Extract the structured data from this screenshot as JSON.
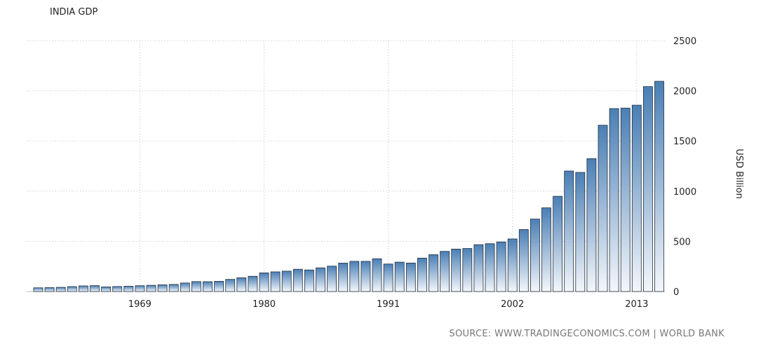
{
  "chart_data": {
    "type": "bar",
    "title": "INDIA GDP",
    "ylabel": "USD Billion",
    "xlabel": "",
    "ylim": [
      0,
      2500
    ],
    "y_ticks": [
      0,
      500,
      1000,
      1500,
      2000,
      2500
    ],
    "x_tick_labels": [
      "1969",
      "1980",
      "1991",
      "2002",
      "2013"
    ],
    "categories": [
      "1960",
      "1961",
      "1962",
      "1963",
      "1964",
      "1965",
      "1966",
      "1967",
      "1968",
      "1969",
      "1970",
      "1971",
      "1972",
      "1973",
      "1974",
      "1975",
      "1976",
      "1977",
      "1978",
      "1979",
      "1980",
      "1981",
      "1982",
      "1983",
      "1984",
      "1985",
      "1986",
      "1987",
      "1988",
      "1989",
      "1990",
      "1991",
      "1992",
      "1993",
      "1994",
      "1995",
      "1996",
      "1997",
      "1998",
      "1999",
      "2000",
      "2001",
      "2002",
      "2003",
      "2004",
      "2005",
      "2006",
      "2007",
      "2008",
      "2009",
      "2010",
      "2011",
      "2012",
      "2013",
      "2014",
      "2015"
    ],
    "values": [
      37,
      39,
      42,
      49,
      56,
      59,
      46,
      50,
      53,
      58,
      62,
      67,
      71,
      85,
      99,
      98,
      102,
      121,
      137,
      152,
      186,
      196,
      203,
      222,
      215,
      236,
      253,
      283,
      301,
      301,
      327,
      274,
      293,
      284,
      333,
      367,
      400,
      423,
      429,
      467,
      477,
      494,
      524,
      618,
      722,
      834,
      949,
      1201,
      1187,
      1324,
      1657,
      1823,
      1828,
      1857,
      2042,
      2095
    ],
    "grid": true,
    "legend": "none",
    "colors": {
      "bar_top": "#4a7fb5",
      "bar_bottom": "#f4f7fb",
      "bar_stroke": "#1f2d3d",
      "grid": "#dddddd"
    },
    "source": "SOURCE: WWW.TRADINGECONOMICS.COM | WORLD BANK"
  }
}
